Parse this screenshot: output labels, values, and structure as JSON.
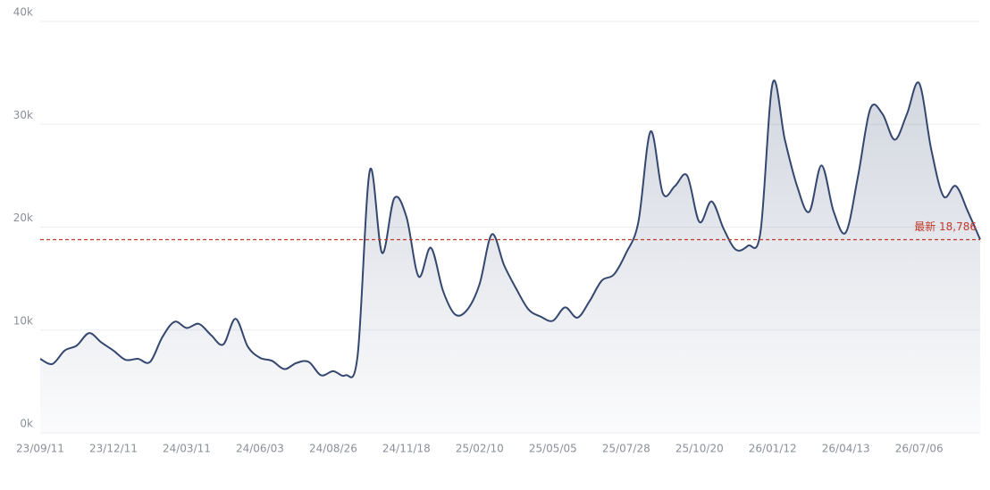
{
  "chart_data": {
    "type": "area",
    "categories": [
      "23/09/11",
      null,
      null,
      null,
      null,
      null,
      "23/12/11",
      null,
      null,
      null,
      null,
      null,
      "24/03/11",
      null,
      null,
      null,
      null,
      null,
      "24/06/03",
      null,
      null,
      null,
      null,
      null,
      "24/08/26",
      null,
      null,
      null,
      null,
      null,
      "24/11/18",
      null,
      null,
      null,
      null,
      null,
      "25/02/10",
      null,
      null,
      null,
      null,
      null,
      "25/05/05",
      null,
      null,
      null,
      null,
      null,
      "25/07/28",
      null,
      null,
      null,
      null,
      null,
      "25/10/20",
      null,
      null,
      null,
      null,
      null,
      "26/01/12",
      null,
      null,
      null,
      null,
      null,
      "26/04/13",
      null,
      null,
      null,
      null,
      null,
      "26/07/06",
      null,
      null,
      null,
      null,
      null
    ],
    "values": [
      7200,
      6700,
      8000,
      8500,
      9700,
      8800,
      8000,
      7100,
      7200,
      6900,
      9300,
      10800,
      10200,
      10600,
      9500,
      8600,
      11100,
      8400,
      7300,
      7000,
      6200,
      6800,
      6900,
      5600,
      6000,
      5600,
      7500,
      25500,
      17500,
      22800,
      21000,
      15200,
      18000,
      13800,
      11500,
      12000,
      14500,
      19300,
      16300,
      14000,
      12000,
      11300,
      10900,
      12200,
      11200,
      12800,
      14800,
      15400,
      17500,
      20500,
      29300,
      23300,
      24000,
      25000,
      20500,
      22500,
      19800,
      17800,
      18200,
      19500,
      34000,
      28500,
      24000,
      21500,
      26000,
      21500,
      19500,
      25000,
      31500,
      31000,
      28500,
      31000,
      34000,
      27500,
      23000,
      24000,
      21500,
      18800
    ],
    "color": "#34476f",
    "ylim": [
      0,
      40000
    ],
    "yticks": [
      {
        "value": 0,
        "label": "0k"
      },
      {
        "value": 10000,
        "label": "10k"
      },
      {
        "value": 20000,
        "label": "20k"
      },
      {
        "value": 30000,
        "label": "30k"
      },
      {
        "value": 40000,
        "label": "40k"
      }
    ],
    "grid": true,
    "reference": {
      "value": 18786,
      "label": "最新 18,786",
      "color": "#c0392b"
    }
  }
}
